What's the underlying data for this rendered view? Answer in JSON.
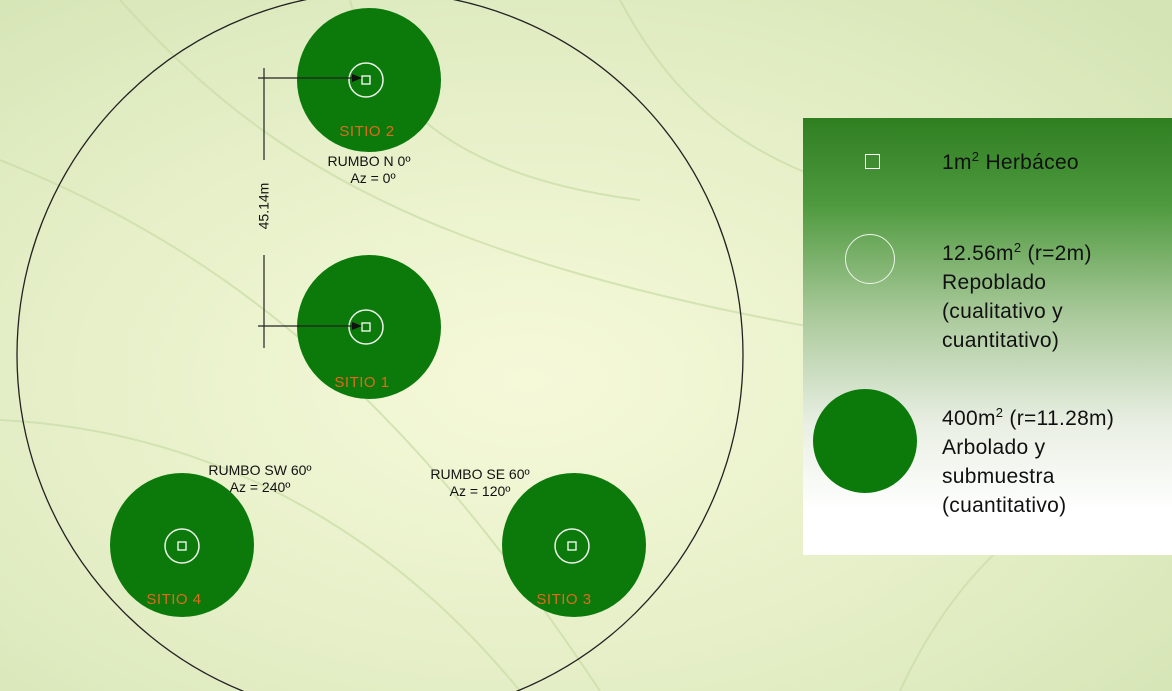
{
  "sites": [
    {
      "id": "2",
      "label": "SITIO 2"
    },
    {
      "id": "1",
      "label": "SITIO 1"
    },
    {
      "id": "3",
      "label": "SITIO 3"
    },
    {
      "id": "4",
      "label": "SITIO 4"
    }
  ],
  "bearings": {
    "north": {
      "line1": "RUMBO N 0º",
      "line2": "Az = 0º"
    },
    "southwest": {
      "line1": "RUMBO SW 60º",
      "line2": "Az = 240º"
    },
    "southeast": {
      "line1": "RUMBO SE 60º",
      "line2": "Az = 120º"
    }
  },
  "distance_label": "45.14m",
  "legend": {
    "item1": {
      "pre": "1m",
      "sup": "2",
      "post": " Herbáceo"
    },
    "item2": {
      "pre": "12.56m",
      "sup": "2",
      "post": " (r=2m)",
      "lines": [
        "Repoblado",
        "(cualitativo y",
        "cuantitativo)"
      ]
    },
    "item3": {
      "pre": "400m",
      "sup": "2",
      "post": " (r=11.28m)",
      "lines": [
        "Arbolado y",
        "submuestra",
        "(cuantitativo)"
      ]
    }
  },
  "colors": {
    "plot_green": "#0b7a0b",
    "site_label": "#e06a1c",
    "ring_white": "#eef4ea"
  }
}
